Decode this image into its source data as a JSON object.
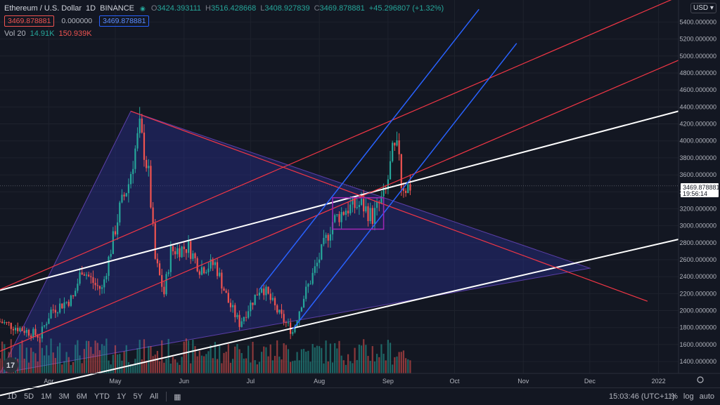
{
  "header": {
    "symbol": "Ethereum / U.S. Dollar",
    "interval": "1D",
    "exchange": "BINANCE",
    "open_label": "O",
    "open": "3424.393111",
    "high_label": "H",
    "high": "3516.428668",
    "low_label": "L",
    "low": "3408.927839",
    "close_label": "C",
    "close": "3469.878881",
    "change": "+45.296807 (+1.32%)",
    "pill_red": "3469.878881",
    "pill_zero": "0.000000",
    "pill_blue": "3469.878881",
    "vol_label": "Vol 20",
    "vol_a": "14.91K",
    "vol_b": "150.939K",
    "currency": "USD"
  },
  "price_tag": {
    "price": "3469.878881",
    "countdown": "19:56:14"
  },
  "bottom": {
    "timeframes": [
      "1D",
      "5D",
      "1M",
      "3M",
      "6M",
      "YTD",
      "1Y",
      "5Y",
      "All"
    ],
    "clock": "15:03:46 (UTC+11)",
    "percent": "%",
    "log": "log",
    "auto": "auto"
  },
  "colors": {
    "up": "#26a69a",
    "down": "#ef5350",
    "bg": "#131722",
    "grid": "#1e222d",
    "blue": "#2962ff",
    "red_line": "#f23645",
    "white_line": "#ffffff",
    "rect": "#9c27b0"
  },
  "chart_data": {
    "type": "candlestick",
    "x_start": "2021-03-10",
    "x_end": "2022-01-10",
    "x_ticks": [
      "Apr",
      "May",
      "Jun",
      "Jul",
      "Aug",
      "Sep",
      "Oct",
      "Nov",
      "Dec",
      "2022"
    ],
    "x_tick_dates": [
      "2021-04-01",
      "2021-05-01",
      "2021-06-01",
      "2021-07-01",
      "2021-08-01",
      "2021-09-01",
      "2021-10-01",
      "2021-11-01",
      "2021-12-01",
      "2022-01-01"
    ],
    "ylim": [
      1260,
      5660
    ],
    "y_ticks": [
      "5400.000000",
      "5200.000000",
      "5000.000000",
      "4800.000000",
      "4600.000000",
      "4400.000000",
      "4200.000000",
      "4000.000000",
      "3800.000000",
      "3600.000000",
      "3400.000000",
      "3200.000000",
      "3000.000000",
      "2800.000000",
      "2600.000000",
      "2400.000000",
      "2200.000000",
      "2000.000000",
      "1800.000000",
      "1600.000000",
      "1400.000000"
    ],
    "y_tick_top_partial": "56",
    "last_price": 3469.878881,
    "anchors": [
      [
        "2021-03-10",
        1870
      ],
      [
        "2021-03-20",
        1780
      ],
      [
        "2021-03-28",
        1700
      ],
      [
        "2021-04-02",
        2000
      ],
      [
        "2021-04-12",
        2150
      ],
      [
        "2021-04-16",
        2500
      ],
      [
        "2021-04-22",
        2300
      ],
      [
        "2021-04-25",
        2250
      ],
      [
        "2021-05-03",
        3200
      ],
      [
        "2021-05-07",
        3500
      ],
      [
        "2021-05-10",
        3900
      ],
      [
        "2021-05-12",
        4150
      ],
      [
        "2021-05-16",
        3600
      ],
      [
        "2021-05-19",
        2600
      ],
      [
        "2021-05-23",
        2200
      ],
      [
        "2021-05-26",
        2700
      ],
      [
        "2021-06-03",
        2750
      ],
      [
        "2021-06-08",
        2500
      ],
      [
        "2021-06-15",
        2550
      ],
      [
        "2021-06-21",
        2100
      ],
      [
        "2021-06-26",
        1850
      ],
      [
        "2021-07-06",
        2300
      ],
      [
        "2021-07-14",
        1950
      ],
      [
        "2021-07-20",
        1750
      ],
      [
        "2021-07-24",
        2100
      ],
      [
        "2021-07-31",
        2550
      ],
      [
        "2021-08-07",
        3050
      ],
      [
        "2021-08-13",
        3200
      ],
      [
        "2021-08-20",
        3250
      ],
      [
        "2021-08-25",
        3100
      ],
      [
        "2021-08-31",
        3400
      ],
      [
        "2021-09-03",
        3850
      ],
      [
        "2021-09-06",
        3900
      ],
      [
        "2021-09-07",
        3500
      ],
      [
        "2021-09-09",
        3450
      ],
      [
        "2021-09-11",
        3470
      ]
    ],
    "overlays": {
      "triangle": [
        [
          "2021-03-10",
          1260
        ],
        [
          "2021-05-08",
          4350
        ],
        [
          "2021-12-01",
          2500
        ]
      ],
      "white_lines": [
        [
          [
            "2021-03-10",
            2240
          ],
          [
            "2022-01-10",
            4350
          ]
        ],
        [
          [
            "2021-03-10",
            1000
          ],
          [
            "2022-01-10",
            2840
          ]
        ]
      ],
      "red_lines": [
        [
          [
            "2021-03-10",
            1520
          ],
          [
            "2022-01-10",
            4950
          ]
        ],
        [
          [
            "2021-03-10",
            2250
          ],
          [
            "2022-01-10",
            5700
          ]
        ]
      ],
      "red_diag": [
        [
          "2021-05-08",
          4350
        ],
        [
          "2021-12-27",
          2110
        ]
      ],
      "blue_channel": [
        [
          [
            "2021-07-20",
            1780
          ],
          [
            "2021-10-29",
            5150
          ]
        ],
        [
          [
            "2021-07-05",
            2250
          ],
          [
            "2021-10-12",
            5550
          ]
        ]
      ],
      "rect": [
        [
          "2021-08-07",
          2960
        ],
        [
          "2021-08-30",
          3330
        ]
      ]
    },
    "volume_ylim": [
      0,
      250
    ]
  }
}
